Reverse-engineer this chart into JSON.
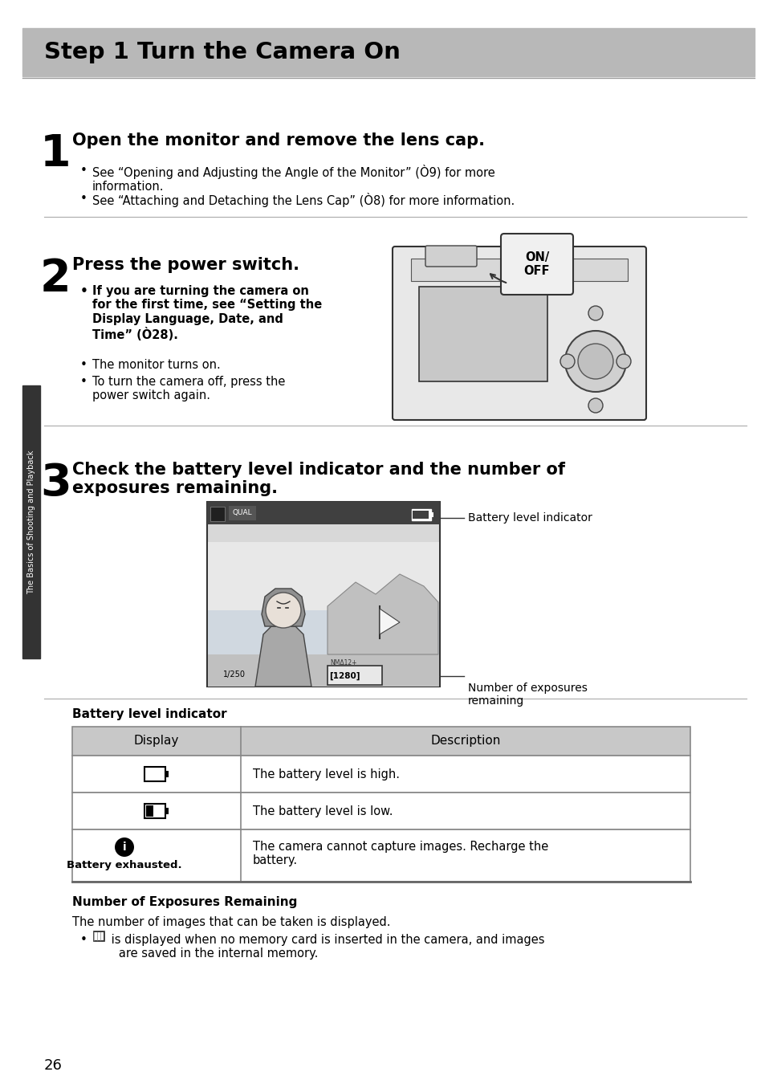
{
  "page_bg": "#ffffff",
  "header_bg": "#b8b8b8",
  "header_text": "Step 1 Turn the Camera On",
  "header_text_color": "#000000",
  "sidebar_bg": "#333333",
  "sidebar_text": "The Basics of Shooting and Playback",
  "sidebar_text_color": "#ffffff",
  "page_number": "26",
  "step1_num": "1",
  "step1_title": "Open the monitor and remove the lens cap.",
  "step1_bullet1": "See “Opening and Adjusting the Angle of the Monitor” (Ò9) for more\ninformation.",
  "step1_bullet2": "See “Attaching and Detaching the Lens Cap” (Ò8) for more information.",
  "step2_num": "2",
  "step2_title": "Press the power switch.",
  "step2_bold_bullet": "If you are turning the camera on\nfor the first time, see “Setting the\nDisplay Language, Date, and\nTime” (Ò28).",
  "step2_bullet1": "The monitor turns on.",
  "step2_bullet2": "To turn the camera off, press the\npower switch again.",
  "step3_num": "3",
  "step3_title": "Check the battery level indicator and the number of\nexposures remaining.",
  "battery_label": "Battery level indicator",
  "exposures_label": "Number of exposures\nremaining",
  "table_header_bg": "#c8c8c8",
  "table_border_color": "#888888",
  "table_title": "Battery level indicator",
  "col1_header": "Display",
  "col2_header": "Description",
  "row1_desc": "The battery level is high.",
  "row2_desc": "The battery level is low.",
  "row3_desc": "The camera cannot capture images. Recharge the\nbattery.",
  "section_title2": "Number of Exposures Remaining",
  "para1": "The number of images that can be taken is displayed.",
  "bullet_memory": " is displayed when no memory card is inserted in the camera, and images\n   are saved in the internal memory.",
  "divider_color": "#aaaaaa",
  "text_color": "#000000"
}
